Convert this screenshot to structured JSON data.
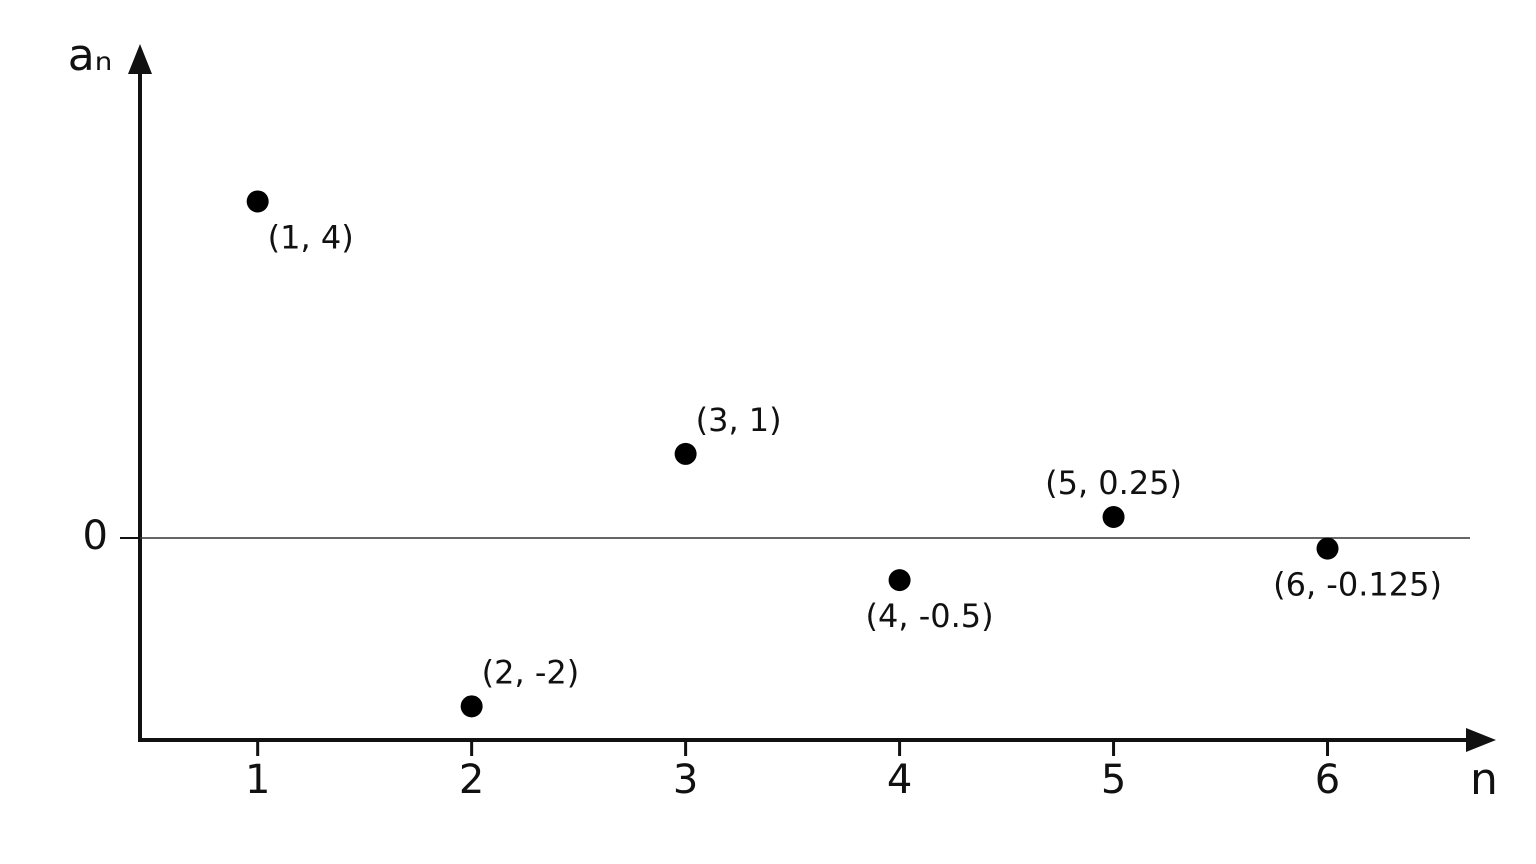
{
  "chart_data": {
    "type": "scatter",
    "x_label": "n",
    "y_label": "aₙ",
    "x": [
      1,
      2,
      3,
      4,
      5,
      6
    ],
    "values": [
      4,
      -2,
      1,
      -0.5,
      0.25,
      -0.125
    ],
    "value_labels": [
      "(1, 4)",
      "(2, -2)",
      "(3, 1)",
      "(4, -0.5)",
      "(5, 0.25)",
      "(6, -0.125)"
    ],
    "color": "#000000",
    "xlim": [
      0.45,
      6.75
    ],
    "xticks": [
      1,
      2,
      3,
      4,
      5,
      6
    ],
    "ylim": [
      -2.4,
      5.8
    ],
    "yticks": [
      0
    ],
    "grid": true
  }
}
